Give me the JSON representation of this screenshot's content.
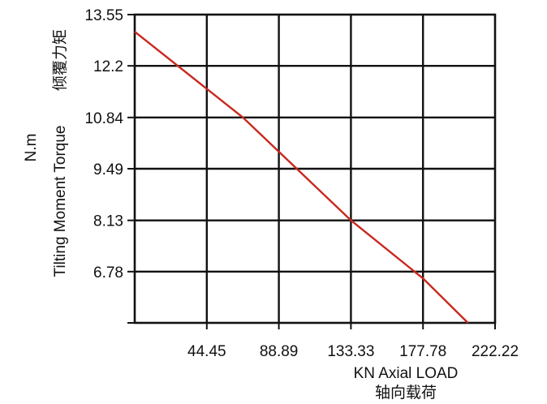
{
  "chart_data": {
    "type": "line",
    "x_ticks": [
      "44.45",
      "88.89",
      "133.33",
      "177.78",
      "222.22"
    ],
    "y_ticks": [
      "13.55",
      "12.2",
      "10.84",
      "9.49",
      "8.13",
      "6.78"
    ],
    "xlim": [
      0,
      222.22
    ],
    "ylim": [
      5.43,
      13.55
    ],
    "xlabel": "KN Axial LOAD",
    "xlabel_cn": "轴向载荷",
    "ylabel_unit": "N.m",
    "ylabel": "Tilting Moment Torque",
    "ylabel_cn": "倾覆力矩",
    "grid": true,
    "series": [
      {
        "color": "#c8281e",
        "x": [
          0,
          66.7,
          133.33,
          177.78,
          205.5
        ],
        "y": [
          13.1,
          10.84,
          8.13,
          6.6,
          5.43
        ]
      }
    ]
  }
}
